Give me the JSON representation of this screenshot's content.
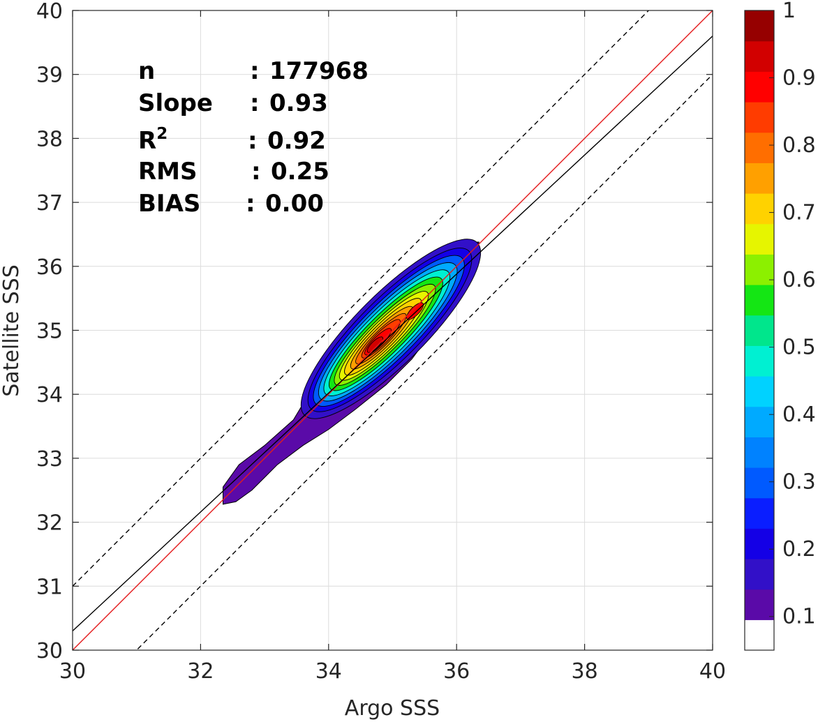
{
  "chart_data": {
    "type": "contour",
    "xlabel": "Argo SSS",
    "ylabel": "Satellite SSS",
    "xlim": [
      30,
      40
    ],
    "ylim": [
      30,
      40
    ],
    "xticks": [
      "30",
      "32",
      "34",
      "36",
      "38",
      "40"
    ],
    "yticks": [
      "30",
      "31",
      "32",
      "33",
      "34",
      "35",
      "36",
      "37",
      "38",
      "39",
      "40"
    ],
    "grid": true,
    "stats": [
      {
        "label": "n",
        "sep": ":",
        "value": "177968"
      },
      {
        "label": "Slope",
        "sep": ":",
        "value": "0.93"
      },
      {
        "label": "R",
        "sup": "2",
        "sep": ":",
        "value": "0.92"
      },
      {
        "label": "RMS",
        "sep": ":",
        "value": "0.25"
      },
      {
        "label": "BIAS",
        "sep": ":",
        "value": "0.00"
      }
    ],
    "lines": [
      {
        "kind": "one-to-one",
        "color": "#e41a1c",
        "style": "solid",
        "points": [
          [
            30,
            30
          ],
          [
            40,
            40
          ]
        ]
      },
      {
        "kind": "regression",
        "color": "#000000",
        "style": "solid",
        "points": [
          [
            30,
            30.3
          ],
          [
            40,
            39.6
          ]
        ]
      },
      {
        "kind": "upper-bound",
        "color": "#000000",
        "style": "dashed",
        "points": [
          [
            30,
            31
          ],
          [
            40,
            41
          ]
        ]
      },
      {
        "kind": "lower-bound",
        "color": "#000000",
        "style": "dashed",
        "points": [
          [
            30,
            29
          ],
          [
            40,
            39
          ]
        ]
      }
    ],
    "density_center": [
      34.6,
      34.65
    ],
    "density_secondary_peak": [
      35.35,
      35.3
    ],
    "density_levels": [
      0.05,
      0.1,
      0.15,
      0.2,
      0.25,
      0.3,
      0.35,
      0.4,
      0.45,
      0.5,
      0.55,
      0.6,
      0.65,
      0.7,
      0.75,
      0.8,
      0.85,
      0.9,
      0.95
    ],
    "outer_region": [
      [
        32.35,
        32.28
      ],
      [
        32.55,
        32.32
      ],
      [
        32.8,
        32.5
      ],
      [
        33.2,
        32.9
      ],
      [
        33.6,
        33.2
      ],
      [
        34.0,
        33.45
      ],
      [
        34.4,
        33.75
      ],
      [
        34.9,
        34.15
      ],
      [
        35.3,
        34.55
      ],
      [
        35.6,
        34.95
      ],
      [
        35.9,
        35.4
      ],
      [
        36.1,
        35.8
      ],
      [
        36.3,
        36.15
      ],
      [
        36.35,
        36.38
      ],
      [
        36.2,
        36.38
      ],
      [
        35.9,
        36.25
      ],
      [
        35.5,
        36.0
      ],
      [
        35.1,
        35.7
      ],
      [
        34.6,
        35.25
      ],
      [
        34.1,
        34.65
      ],
      [
        33.75,
        34.1
      ],
      [
        33.45,
        33.6
      ],
      [
        33.0,
        33.2
      ],
      [
        32.6,
        32.9
      ],
      [
        32.35,
        32.55
      ]
    ],
    "colorbar": {
      "ticks": [
        "0.1",
        "0.2",
        "0.3",
        "0.4",
        "0.5",
        "0.6",
        "0.7",
        "0.8",
        "0.9",
        "1"
      ],
      "colors": [
        "#ffffff",
        "#5a0aa8",
        "#3210c8",
        "#1400e6",
        "#0a1eff",
        "#005aff",
        "#0082ff",
        "#00aaff",
        "#00d2ff",
        "#00f0d2",
        "#00e68c",
        "#14e614",
        "#8cf000",
        "#e6f500",
        "#ffd200",
        "#ffa000",
        "#ff6e00",
        "#ff3c00",
        "#ff0000",
        "#d20000",
        "#960000"
      ]
    }
  }
}
